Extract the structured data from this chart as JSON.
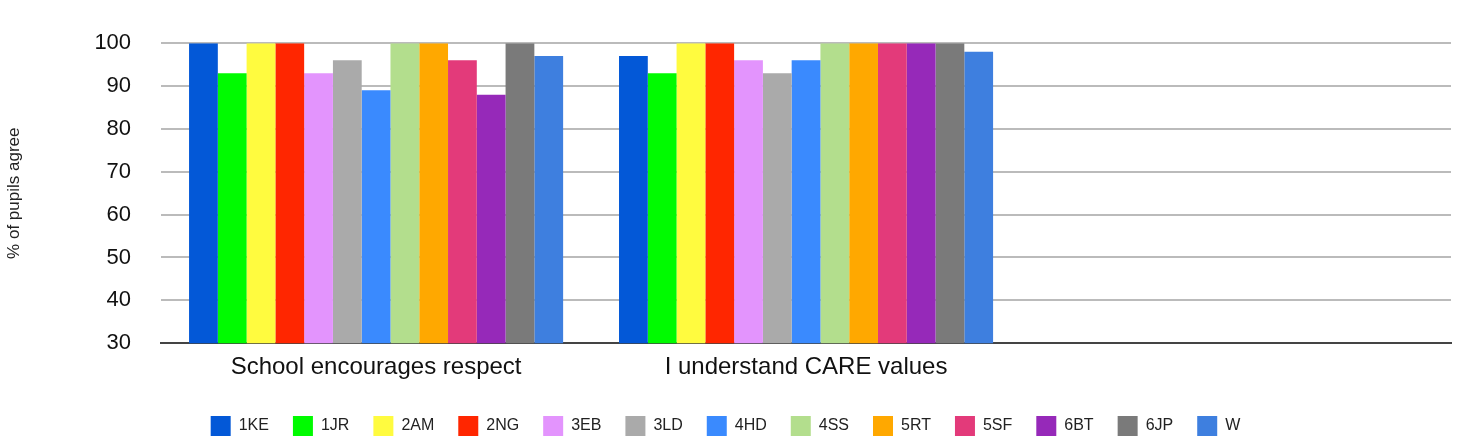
{
  "chart_data": {
    "type": "bar",
    "ylabel": "% of pupils agree",
    "categories": [
      "School encourages respect",
      "I understand CARE values",
      null
    ],
    "series": [
      {
        "name": "1KE",
        "color": "#0358d7",
        "values": [
          100,
          97,
          null
        ]
      },
      {
        "name": "1JR",
        "color": "#00fb00",
        "values": [
          93,
          93,
          null
        ]
      },
      {
        "name": "2AM",
        "color": "#fffb3f",
        "values": [
          100,
          100,
          null
        ]
      },
      {
        "name": "2NG",
        "color": "#ff2600",
        "values": [
          100,
          100,
          null
        ]
      },
      {
        "name": "3EB",
        "color": "#e394fd",
        "values": [
          93,
          96,
          null
        ]
      },
      {
        "name": "3LD",
        "color": "#aaaaaa",
        "values": [
          96,
          93,
          null
        ]
      },
      {
        "name": "4HD",
        "color": "#3a8afe",
        "values": [
          89,
          96,
          null
        ]
      },
      {
        "name": "4SS",
        "color": "#b3de8d",
        "values": [
          100,
          100,
          null
        ]
      },
      {
        "name": "5RT",
        "color": "#ffa800",
        "values": [
          100,
          100,
          null
        ]
      },
      {
        "name": "5SF",
        "color": "#e33a7a",
        "values": [
          96,
          100,
          null
        ]
      },
      {
        "name": "6BT",
        "color": "#9629b9",
        "values": [
          88,
          100,
          null
        ]
      },
      {
        "name": "6JP",
        "color": "#7a7a7a",
        "values": [
          100,
          100,
          null
        ]
      },
      {
        "name": "W",
        "color": "#3e7fdf",
        "values": [
          97,
          98,
          null
        ]
      }
    ],
    "ylim": [
      30,
      100
    ],
    "yticks": [
      30,
      40,
      50,
      60,
      70,
      80,
      90,
      100
    ],
    "grid": "y",
    "legend": "bottom"
  }
}
